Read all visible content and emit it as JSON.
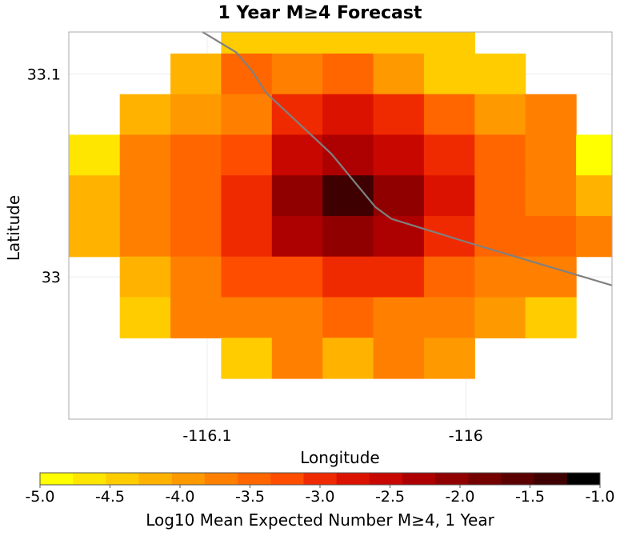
{
  "chart_data": {
    "type": "heatmap",
    "title": "1 Year M≥4 Forecast",
    "xlabel": "Longitude",
    "ylabel": "Latitude",
    "xlim": [
      -116.1535,
      -115.9435
    ],
    "ylim": [
      32.9299,
      33.1206
    ],
    "x_ticks": [
      {
        "value": -116.1,
        "label": "-116.1"
      },
      {
        "value": -116.0,
        "label": "-116"
      }
    ],
    "y_ticks": [
      {
        "value": 33.1,
        "label": "33.1"
      },
      {
        "value": 33.0,
        "label": "33"
      }
    ],
    "grid": true,
    "cell_size": {
      "lon": 0.0196,
      "lat": 0.02
    },
    "x_centers": [
      -116.1436,
      -116.124,
      -116.1044,
      -116.0848,
      -116.0652,
      -116.0456,
      -116.026,
      -116.0064,
      -115.9868,
      -115.9672,
      -115.9476
    ],
    "y_centers": [
      33.12,
      33.1,
      33.08,
      33.06,
      33.04,
      33.02,
      33.0,
      32.98,
      32.96,
      32.94
    ],
    "values": [
      [
        null,
        null,
        null,
        -4.3,
        -4.3,
        -4.3,
        -4.5,
        -4.5,
        null,
        null,
        null
      ],
      [
        null,
        null,
        -4.1,
        -3.5,
        -3.7,
        -3.4,
        -3.9,
        -4.3,
        -4.5,
        null,
        null
      ],
      [
        null,
        -4.1,
        -3.9,
        -3.6,
        -3.1,
        -2.8,
        -3.1,
        -3.4,
        -4.0,
        -3.7,
        null
      ],
      [
        -4.6,
        -3.8,
        -3.5,
        -3.2,
        -2.5,
        -2.2,
        -2.5,
        -3.1,
        -3.5,
        -3.6,
        -4.8
      ],
      [
        -4.1,
        -3.8,
        -3.5,
        -2.9,
        -2.0,
        -1.3,
        -2.0,
        -2.7,
        -3.5,
        -3.7,
        -4.1
      ],
      [
        -4.1,
        -3.8,
        -3.5,
        -2.9,
        -2.3,
        -2.1,
        -2.3,
        -2.9,
        -3.4,
        -3.5,
        -3.7
      ],
      [
        null,
        -4.1,
        -3.6,
        -3.3,
        -3.2,
        -2.9,
        -3.1,
        -3.5,
        -3.6,
        -3.6,
        null
      ],
      [
        null,
        -4.4,
        -3.8,
        -3.6,
        -3.8,
        -3.5,
        -3.8,
        -3.8,
        -4.0,
        -4.4,
        null
      ],
      [
        null,
        null,
        null,
        -4.3,
        -3.8,
        -4.1,
        -3.8,
        -3.9,
        null,
        null,
        null
      ],
      [
        null,
        null,
        null,
        null,
        null,
        null,
        null,
        null,
        null,
        null,
        null
      ]
    ],
    "fault_line": [
      {
        "lon": -116.1018,
        "lat": 33.1206
      },
      {
        "lon": -116.0888,
        "lat": 33.1106
      },
      {
        "lon": -116.0828,
        "lat": 33.1016
      },
      {
        "lon": -116.0772,
        "lat": 33.0906
      },
      {
        "lon": -116.052,
        "lat": 33.0606
      },
      {
        "lon": -116.035,
        "lat": 33.0344
      },
      {
        "lon": -116.0288,
        "lat": 33.0286
      },
      {
        "lon": -115.9978,
        "lat": 33.0164
      },
      {
        "lon": -115.9435,
        "lat": 32.9958
      }
    ],
    "colorbar": {
      "label": "Log10 Mean Expected Number M≥4, 1 Year",
      "min": -5.0,
      "max": -1.0,
      "ticks": [
        {
          "value": -5.0,
          "label": "-5.0"
        },
        {
          "value": -4.5,
          "label": "-4.5"
        },
        {
          "value": -4.0,
          "label": "-4.0"
        },
        {
          "value": -3.5,
          "label": "-3.5"
        },
        {
          "value": -3.0,
          "label": "-3.0"
        },
        {
          "value": -2.5,
          "label": "-2.5"
        },
        {
          "value": -2.0,
          "label": "-2.0"
        },
        {
          "value": -1.5,
          "label": "-1.5"
        },
        {
          "value": -1.0,
          "label": "-1.0"
        }
      ],
      "colors": [
        "#ffff00",
        "#ffe600",
        "#ffcc00",
        "#ffb300",
        "#ff9900",
        "#ff8000",
        "#ff6600",
        "#ff4d00",
        "#f02a00",
        "#dc1200",
        "#c80800",
        "#ad0000",
        "#910000",
        "#750000",
        "#5a0000",
        "#3e0000",
        "#000000"
      ]
    }
  }
}
